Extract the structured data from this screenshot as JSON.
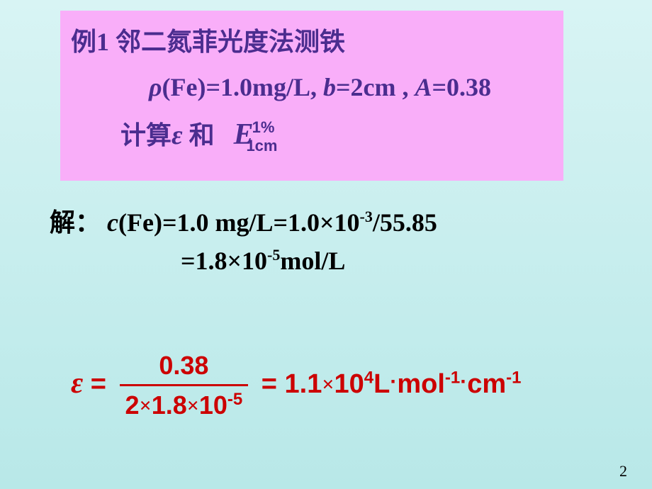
{
  "problem": {
    "title": "例1  邻二氮菲光度法测铁",
    "given_rho": "ρ",
    "given_fe": "(Fe)=1.0mg/L, ",
    "given_b": "b",
    "given_b_val": "=2cm , ",
    "given_a": "A",
    "given_a_val": "=0.38",
    "calc_prefix": "计算",
    "eps": "ε",
    "and": " 和",
    "E": "E",
    "E_sup": "1%",
    "E_sub": "1cm"
  },
  "solution": {
    "prefix": "解：",
    "c_label": "c",
    "line1_rest": "(Fe)=1.0 mg/L=1.0×10",
    "line1_exp": "-3",
    "line1_end": "/55.85",
    "line2_start": "=1.8×10",
    "line2_exp": "-5",
    "line2_end": "mol/L"
  },
  "formula": {
    "eps": "ε",
    "eq1": " = ",
    "num": "0.38",
    "den_a": "2",
    "den_x1": "×",
    "den_b": "1.8",
    "den_x2": "×",
    "den_c": "10",
    "den_exp": "-5",
    "eq2": " = 1.1",
    "x3": "×",
    "r1": "10",
    "r1_exp": "4",
    "unit_L": "L",
    "dot1": "·",
    "unit_mol": "mol",
    "exp_m1": "-1",
    "dot2": "·",
    "unit_cm": "cm",
    "exp_m1b": "-1"
  },
  "page": "2"
}
